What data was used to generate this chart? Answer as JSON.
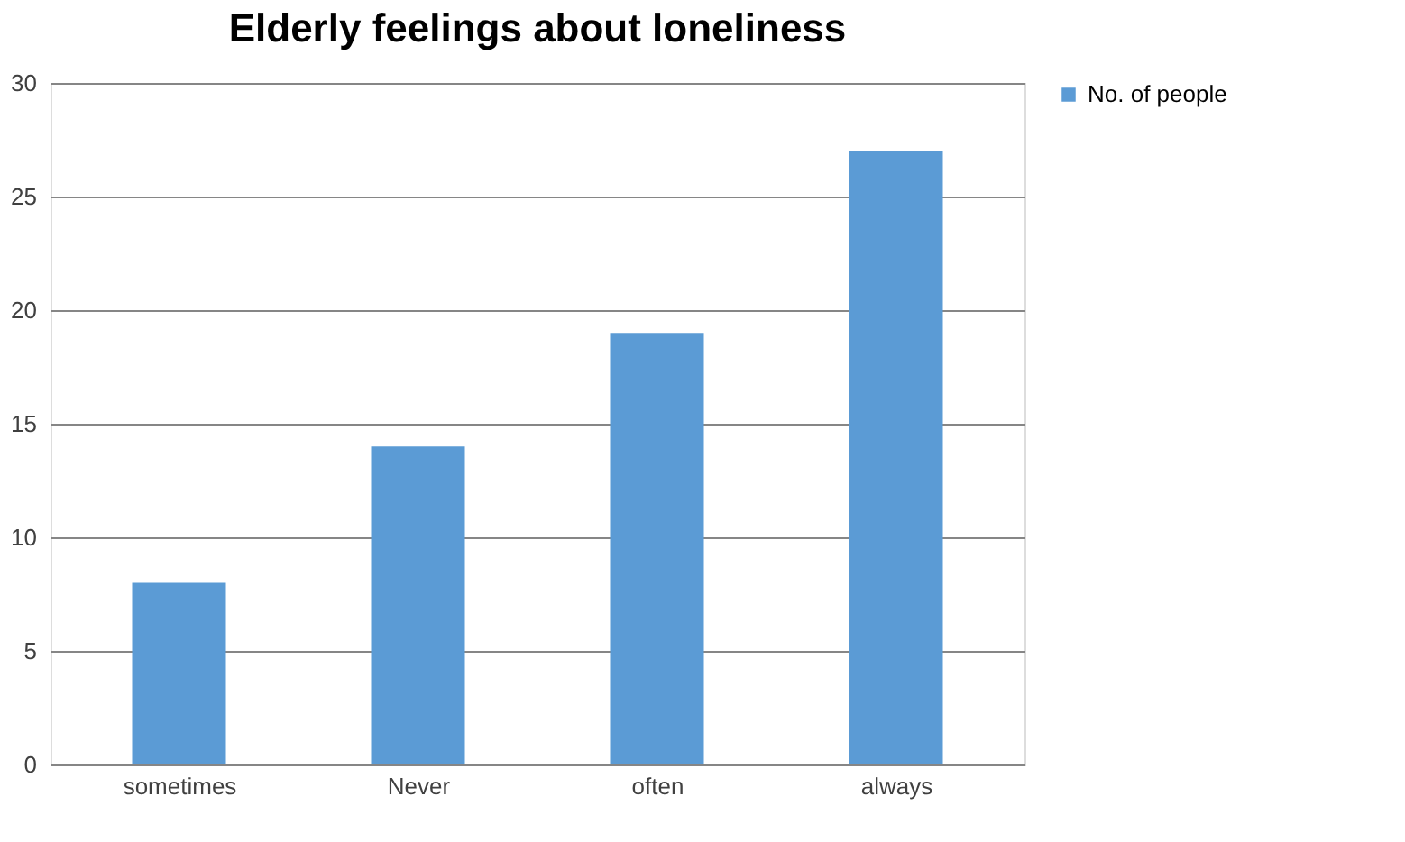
{
  "chart_data": {
    "type": "bar",
    "title": "Elderly feelings about loneliness",
    "categories": [
      "sometimes",
      "Never",
      "often",
      "always"
    ],
    "series": [
      {
        "name": "No. of people",
        "color": "#5b9bd5",
        "values": [
          8,
          14,
          19,
          27
        ]
      }
    ],
    "ylim": [
      0,
      30
    ],
    "yticks": [
      0,
      5,
      10,
      15,
      20,
      25,
      30
    ],
    "grid": "y",
    "legend": "right"
  }
}
